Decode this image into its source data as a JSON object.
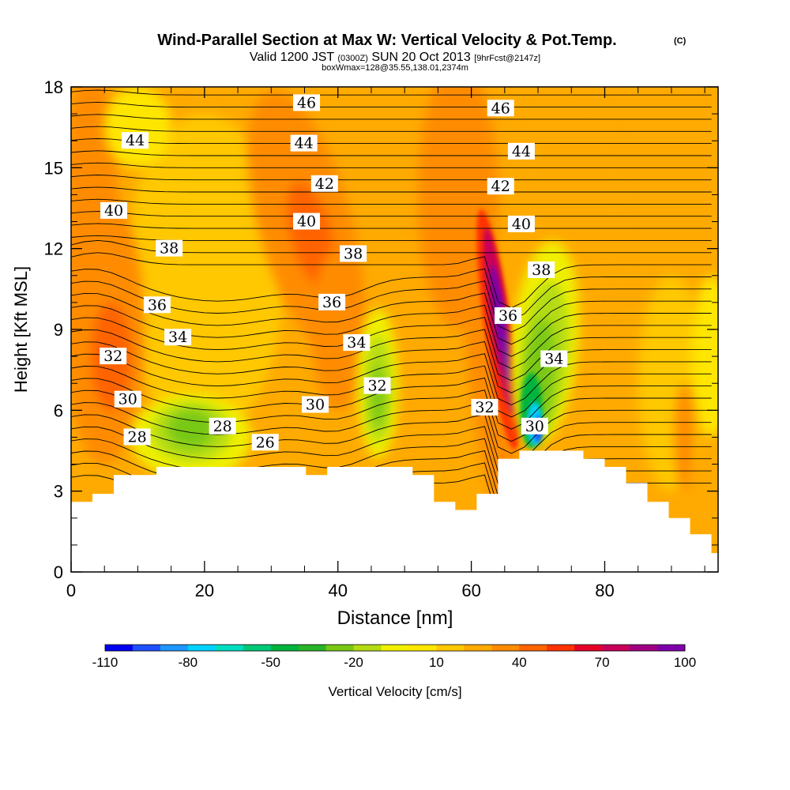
{
  "chart_data": {
    "type": "heatmap",
    "title": "Wind-Parallel Section at Max W: Vertical Velocity & Pot.Temp.",
    "title_mark": "(C)",
    "subtitle": {
      "main_a": "Valid 1200 JST",
      "small_a": "(0300Z)",
      "main_b": "SUN 20 Oct 2013",
      "small_b": "[9hrFcst@2147z]"
    },
    "subtitle2": "boxWmax=128@35.55,138.01,2374m",
    "xlabel": "Distance [nm]",
    "ylabel": "Height [Kft MSL]",
    "xlim": [
      0,
      97
    ],
    "ylim": [
      0,
      18
    ],
    "xticks": [
      "0",
      "20",
      "40",
      "60",
      "80"
    ],
    "xtick_values": [
      0,
      20,
      40,
      60,
      80
    ],
    "yticks": [
      "0",
      "3",
      "6",
      "9",
      "12",
      "15",
      "18"
    ],
    "ytick_values": [
      0,
      3,
      6,
      9,
      12,
      15,
      18
    ],
    "colorbar": {
      "label": "Vertical Velocity [cm/s]",
      "min": -110,
      "max": 100,
      "step": 10,
      "tick_labels": [
        "-110",
        "-80",
        "-50",
        "-20",
        "10",
        "40",
        "70",
        "100"
      ],
      "tick_values": [
        -110,
        -80,
        -50,
        -20,
        10,
        40,
        70,
        100
      ],
      "colors": [
        "#0000f0",
        "#1e50ff",
        "#1e96ff",
        "#00d2ff",
        "#00ddc0",
        "#00c878",
        "#00b43c",
        "#28b428",
        "#78c814",
        "#b4dc14",
        "#f0f000",
        "#ffe600",
        "#ffc800",
        "#ffaa00",
        "#ff8c00",
        "#ff6400",
        "#ff3200",
        "#e60028",
        "#c8005a",
        "#a00082",
        "#7d00aa"
      ]
    },
    "terrain_kft": [
      [
        0,
        2.6
      ],
      [
        3.2,
        2.9
      ],
      [
        6.4,
        3.6
      ],
      [
        12.8,
        3.9
      ],
      [
        35.2,
        3.6
      ],
      [
        38.4,
        3.9
      ],
      [
        51.2,
        3.6
      ],
      [
        54.4,
        2.6
      ],
      [
        57.6,
        2.3
      ],
      [
        60.8,
        2.9
      ],
      [
        64,
        4.2
      ],
      [
        67.2,
        4.5
      ],
      [
        76.8,
        4.2
      ],
      [
        80,
        3.9
      ],
      [
        83.2,
        3.3
      ],
      [
        86.4,
        2.6
      ],
      [
        89.6,
        2.0
      ],
      [
        92.8,
        1.4
      ],
      [
        96,
        0.7
      ],
      [
        97,
        0.7
      ]
    ],
    "theta_contour_labels": [
      {
        "text": "46",
        "x": 35.3,
        "y": 17.4
      },
      {
        "text": "46",
        "x": 64.4,
        "y": 17.2
      },
      {
        "text": "44",
        "x": 9.6,
        "y": 16.0
      },
      {
        "text": "44",
        "x": 34.9,
        "y": 15.9
      },
      {
        "text": "44",
        "x": 67.5,
        "y": 15.6
      },
      {
        "text": "42",
        "x": 38.0,
        "y": 14.4
      },
      {
        "text": "42",
        "x": 64.4,
        "y": 14.3
      },
      {
        "text": "40",
        "x": 6.4,
        "y": 13.4
      },
      {
        "text": "40",
        "x": 35.3,
        "y": 13.0
      },
      {
        "text": "40",
        "x": 67.5,
        "y": 12.9
      },
      {
        "text": "38",
        "x": 14.7,
        "y": 12.0
      },
      {
        "text": "38",
        "x": 42.3,
        "y": 11.8
      },
      {
        "text": "38",
        "x": 70.5,
        "y": 11.2
      },
      {
        "text": "36",
        "x": 12.9,
        "y": 9.9
      },
      {
        "text": "36",
        "x": 39.1,
        "y": 10.0
      },
      {
        "text": "36",
        "x": 65.5,
        "y": 9.5
      },
      {
        "text": "34",
        "x": 16.0,
        "y": 8.7
      },
      {
        "text": "34",
        "x": 42.8,
        "y": 8.5
      },
      {
        "text": "34",
        "x": 72.4,
        "y": 7.9
      },
      {
        "text": "32",
        "x": 6.3,
        "y": 8.0
      },
      {
        "text": "32",
        "x": 45.9,
        "y": 6.9
      },
      {
        "text": "32",
        "x": 62.0,
        "y": 6.1
      },
      {
        "text": "30",
        "x": 8.5,
        "y": 6.4
      },
      {
        "text": "30",
        "x": 36.6,
        "y": 6.2
      },
      {
        "text": "30",
        "x": 69.5,
        "y": 5.4
      },
      {
        "text": "28",
        "x": 9.9,
        "y": 5.0
      },
      {
        "text": "28",
        "x": 22.7,
        "y": 5.4
      },
      {
        "text": "26",
        "x": 29.1,
        "y": 4.8
      }
    ]
  }
}
